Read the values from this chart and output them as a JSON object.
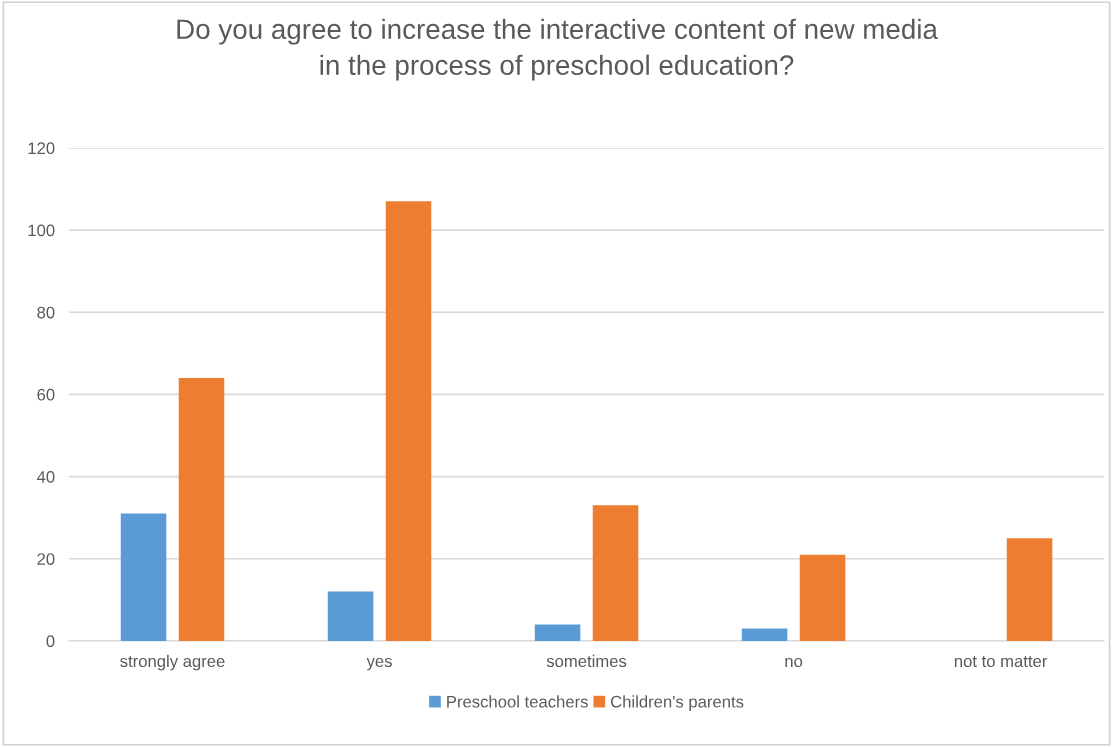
{
  "chart_data": {
    "type": "bar",
    "title": "Do you agree to increase the interactive content of new media\nin the process of preschool education?",
    "categories": [
      "strongly agree",
      "yes",
      "sometimes",
      "no",
      "not to matter"
    ],
    "series": [
      {
        "name": "Preschool teachers",
        "color": "#5b9bd5",
        "values": [
          31,
          12,
          4,
          3,
          0
        ]
      },
      {
        "name": "Children's parents",
        "color": "#ed7d31",
        "values": [
          64,
          107,
          33,
          21,
          25
        ]
      }
    ],
    "ylim": [
      0,
      120
    ],
    "yticks": [
      0,
      20,
      40,
      60,
      80,
      100,
      120
    ],
    "grid": "y",
    "legend": "bottom"
  }
}
